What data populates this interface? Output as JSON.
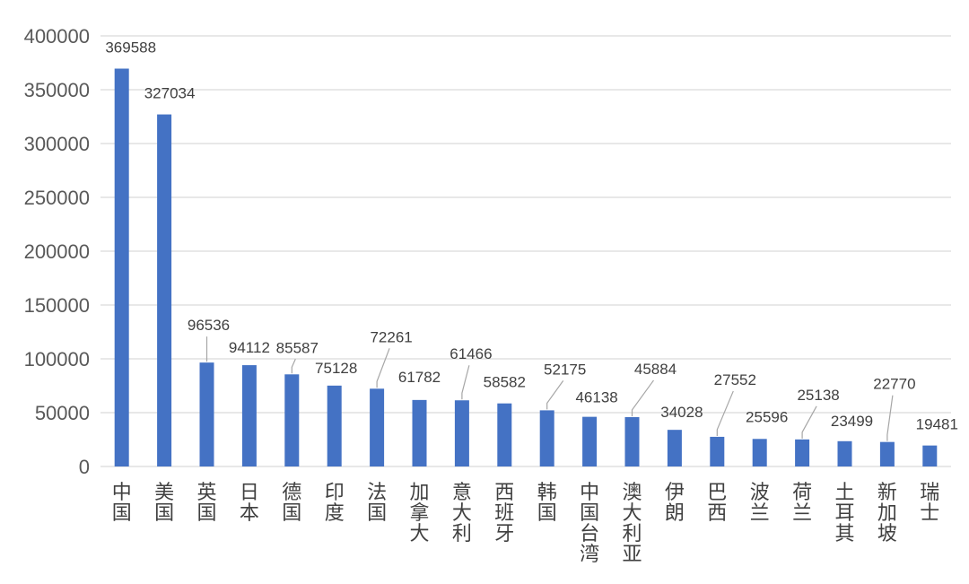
{
  "chart_data": {
    "type": "bar",
    "title": "",
    "xlabel": "",
    "ylabel": "",
    "ylim": [
      0,
      400000
    ],
    "yticks": [
      "0",
      "50000",
      "100000",
      "150000",
      "200000",
      "250000",
      "300000",
      "350000",
      "400000"
    ],
    "grid": true,
    "legend": "none",
    "bar_color": "#4472C4",
    "categories": [
      "中国",
      "美国",
      "英国",
      "日本",
      "德国",
      "印度",
      "法国",
      "加拿大",
      "意大利",
      "西班牙",
      "韩国",
      "中国台湾",
      "澳大利亚",
      "伊朗",
      "巴西",
      "波兰",
      "荷兰",
      "土耳其",
      "新加坡",
      "瑞士"
    ],
    "values": [
      369588,
      327034,
      96536,
      94112,
      85587,
      75128,
      72261,
      61782,
      61466,
      58582,
      52175,
      46138,
      45884,
      34028,
      27552,
      25596,
      25138,
      23499,
      22770,
      19481
    ],
    "data_labels": [
      "369588",
      "327034",
      "96536",
      "94112",
      "85587",
      "75128",
      "72261",
      "61782",
      "61466",
      "58582",
      "52175",
      "46138",
      "45884",
      "34028",
      "27552",
      "25596",
      "25138",
      "23499",
      "22770",
      "19481"
    ]
  }
}
